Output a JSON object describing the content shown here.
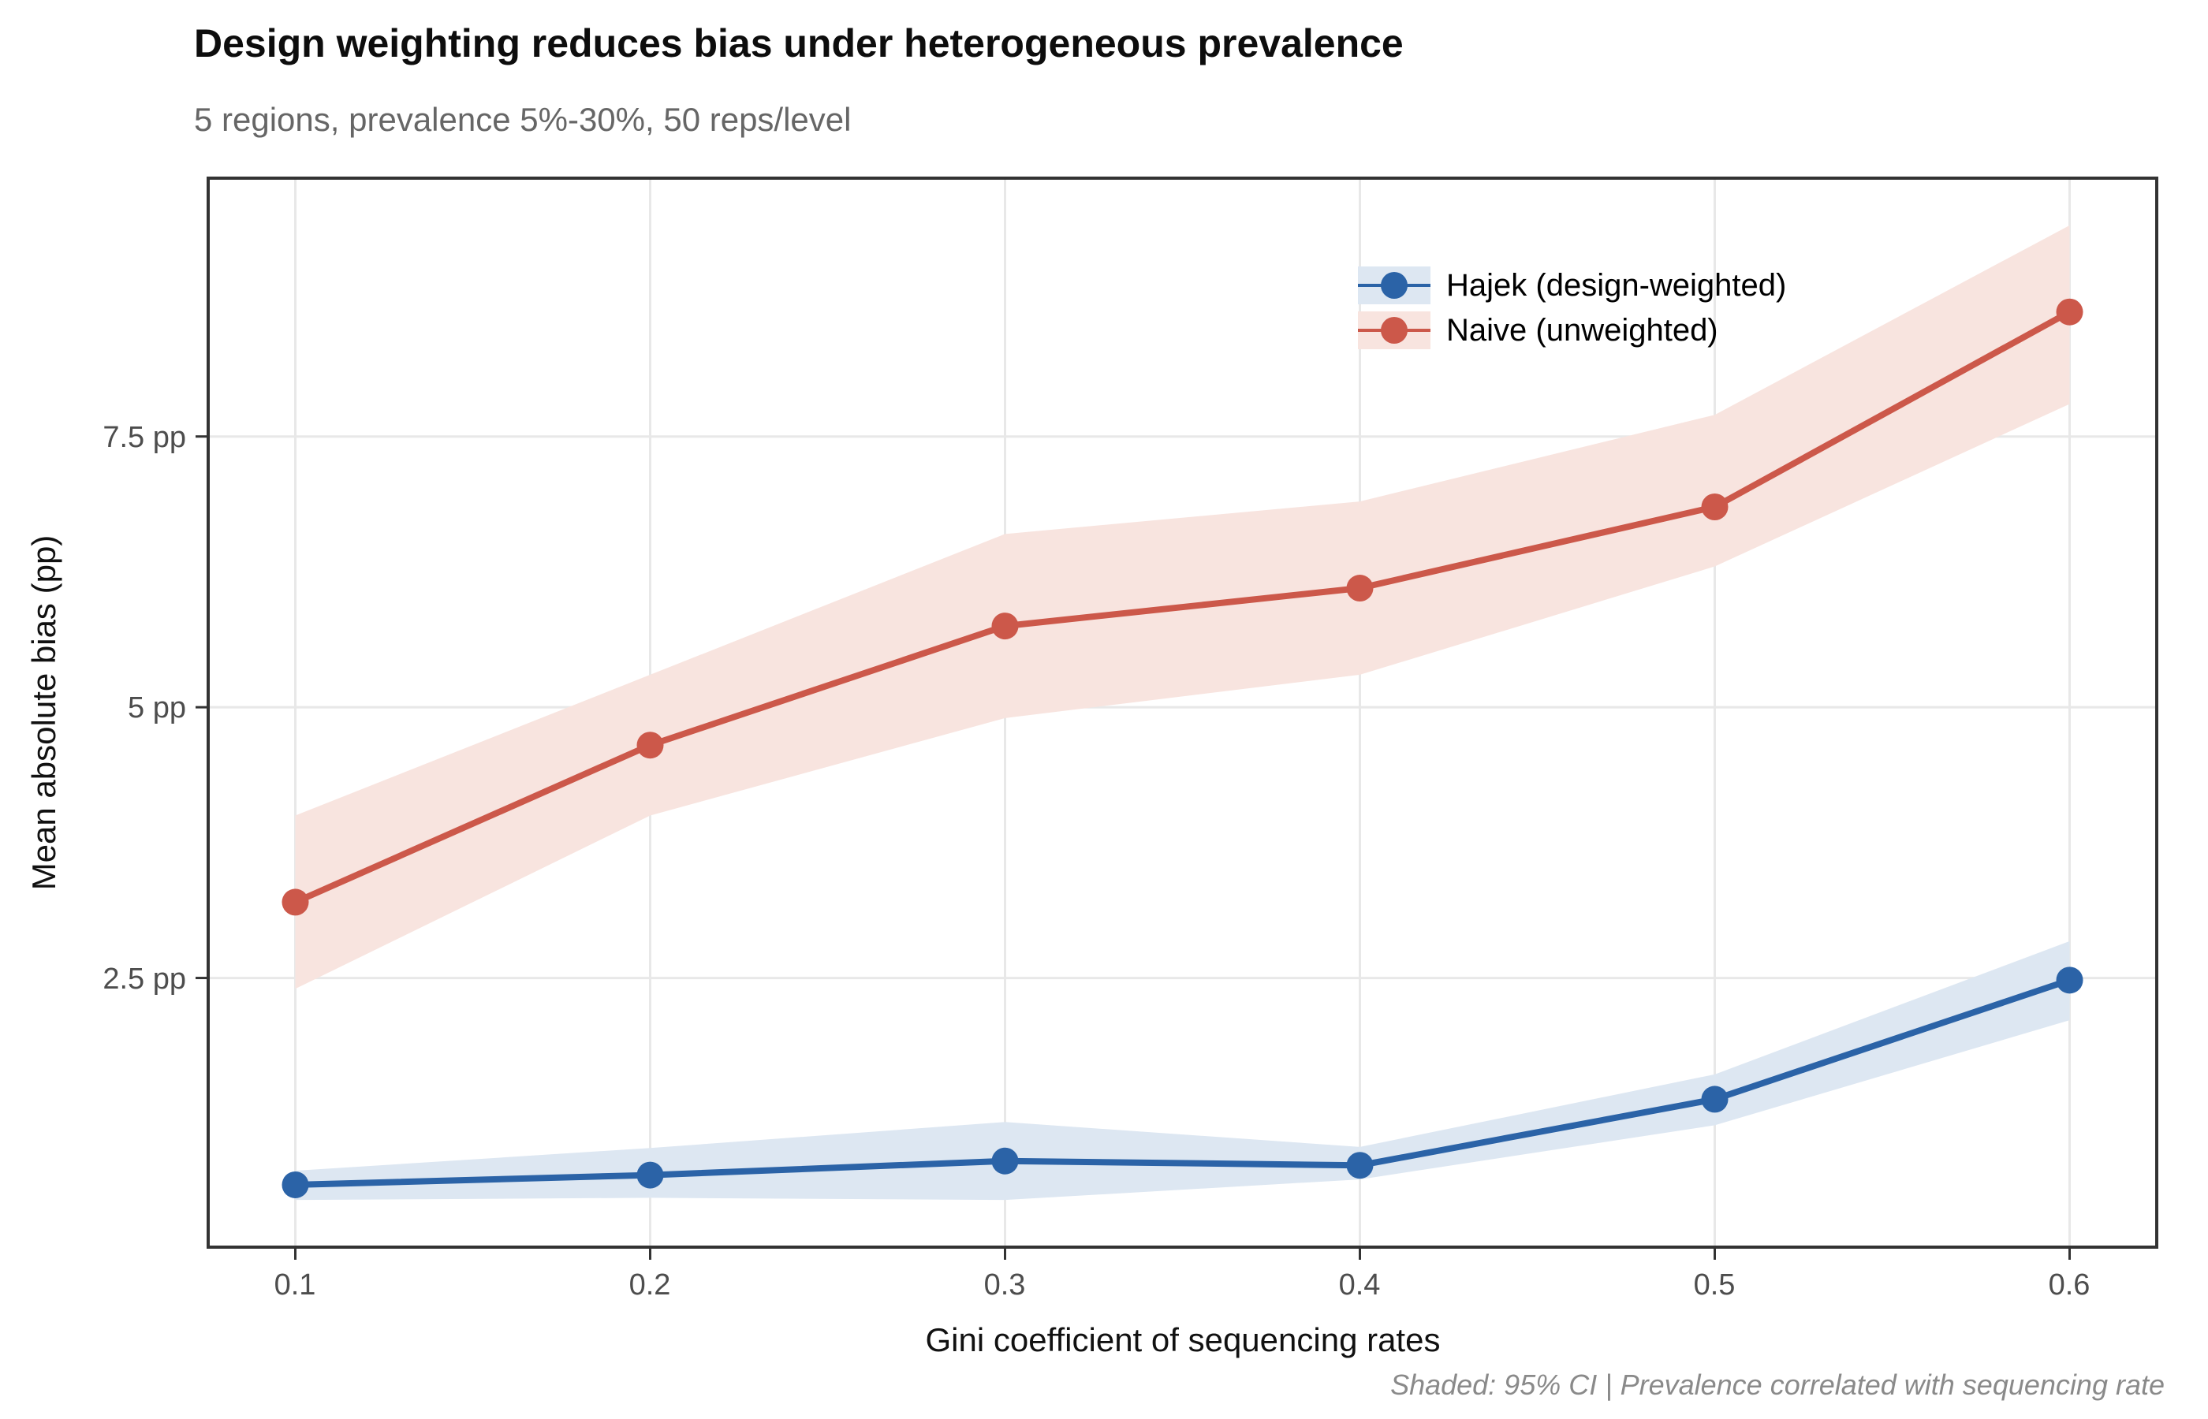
{
  "header": {
    "title": "Design weighting reduces bias under heterogeneous prevalence",
    "subtitle": "5 regions, prevalence 5%-30%, 50 reps/level"
  },
  "caption": "Shaded: 95% CI | Prevalence correlated with sequencing rate",
  "axes": {
    "x": {
      "title": "Gini coefficient of sequencing rates",
      "ticks": [
        {
          "label": "0.1",
          "value": 0.1
        },
        {
          "label": "0.2",
          "value": 0.2
        },
        {
          "label": "0.3",
          "value": 0.3
        },
        {
          "label": "0.4",
          "value": 0.4
        },
        {
          "label": "0.5",
          "value": 0.5
        },
        {
          "label": "0.6",
          "value": 0.6
        }
      ]
    },
    "y": {
      "title": "Mean absolute bias (pp)",
      "ticks": [
        {
          "label": "7.5 pp",
          "value": 7.5
        },
        {
          "label": "5 pp",
          "value": 5
        },
        {
          "label": "2.5 pp",
          "value": 2.5
        }
      ]
    }
  },
  "legend": {
    "items": [
      {
        "label": "Hajek (design-weighted)",
        "color": "#2B63A7",
        "fill": "#DDE7F2"
      },
      {
        "label": "Naive (unweighted)",
        "color": "#CC584A",
        "fill": "#F8E4DF"
      }
    ]
  },
  "colors": {
    "hajek": "#2B63A7",
    "naive": "#CC584A",
    "hajek_ribbon": "#DDE7F2",
    "naive_ribbon": "#F8E4DF",
    "gridline": "#E8E8E8",
    "panel_border": "#333333"
  },
  "chart_data": {
    "type": "line",
    "title": "Design weighting reduces bias under heterogeneous prevalence",
    "subtitle": "5 regions, prevalence 5%-30%, 50 reps/level",
    "xlabel": "Gini coefficient of sequencing rates",
    "ylabel": "Mean absolute bias (pp)",
    "x": [
      0.1,
      0.2,
      0.3,
      0.4,
      0.5,
      0.6
    ],
    "series": [
      {
        "name": "Hajek (design-weighted)",
        "color": "#2B63A7",
        "fill": "#DDE7F2",
        "values": [
          0.59,
          0.68,
          0.81,
          0.77,
          1.38,
          2.48
        ],
        "ci_low": [
          0.45,
          0.47,
          0.45,
          0.64,
          1.14,
          2.11
        ],
        "ci_high": [
          0.72,
          0.93,
          1.17,
          0.94,
          1.61,
          2.84
        ]
      },
      {
        "name": "Naive (unweighted)",
        "color": "#CC584A",
        "fill": "#F8E4DF",
        "values": [
          3.2,
          4.65,
          5.75,
          6.1,
          6.85,
          8.65
        ],
        "ci_low": [
          2.4,
          4.0,
          4.9,
          5.3,
          6.3,
          7.8
        ],
        "ci_high": [
          4.0,
          5.3,
          6.6,
          6.9,
          7.7,
          9.45
        ]
      }
    ],
    "x_range": [
      0.075,
      0.625
    ],
    "ylim": [
      0,
      9.9
    ],
    "y_gridlines": [
      2.5,
      5,
      7.5
    ],
    "grid": true,
    "legend_position": "inside-top-right",
    "shading_note": "95% CI"
  }
}
